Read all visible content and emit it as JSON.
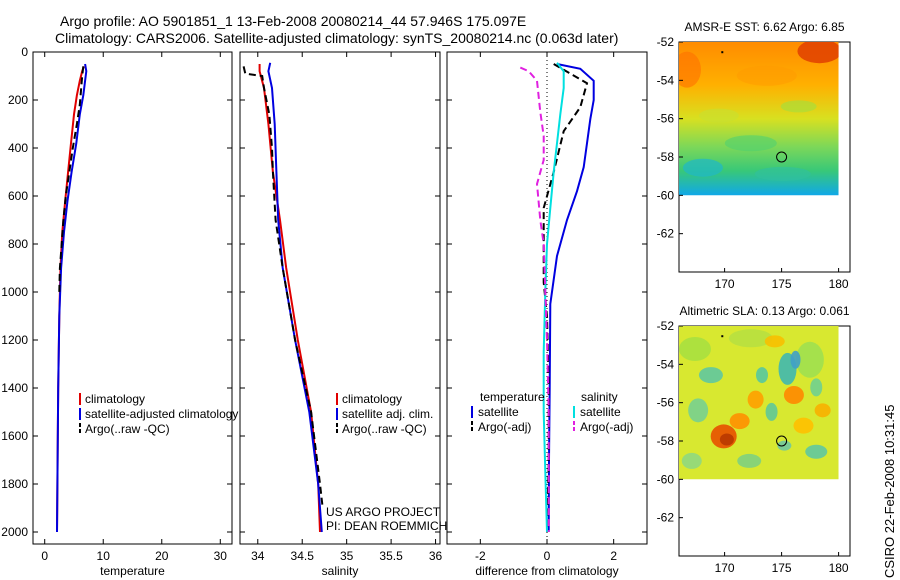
{
  "title": {
    "line1": "Argo profile: AO 5901851_1 13-Feb-2008 20080214_44 57.946S 175.097E",
    "line2": "Climatology: CARS2006. Satellite-adjusted climatology: synTS_20080214.nc (0.063d later)"
  },
  "credit": {
    "project": "US ARGO PROJECT",
    "pi": "PI: DEAN ROEMMICH",
    "stamp": "CSIRO 22-Feb-2008 10:31:45"
  },
  "colors": {
    "climatology": "#e00000",
    "satellite": "#0000e0",
    "argo": "#000000",
    "salinity_satellite": "#00e0e0",
    "salinity_argo": "#e020e0"
  },
  "chart_data": [
    {
      "type": "line",
      "name": "temperature",
      "xlabel": "temperature",
      "ylabel": "",
      "xlim": [
        -2,
        32
      ],
      "ylim": [
        2050,
        0
      ],
      "xticks": [
        0,
        10,
        20,
        30
      ],
      "yticks": [
        0,
        200,
        400,
        600,
        800,
        1000,
        1200,
        1400,
        1600,
        1800,
        2000
      ],
      "legend": {
        "placement": "lower-middle",
        "labels": [
          "climatology",
          "satellite-adjusted climatology",
          "Argo(..raw -QC)"
        ]
      },
      "series": [
        {
          "name": "climatology",
          "color": "#e00000",
          "dash": false,
          "points": [
            [
              6.7,
              60
            ],
            [
              6.4,
              80
            ],
            [
              6.0,
              120
            ],
            [
              5.5,
              180
            ],
            [
              5.0,
              260
            ],
            [
              4.5,
              380
            ],
            [
              4.0,
              500
            ],
            [
              3.5,
              620
            ],
            [
              3.0,
              750
            ],
            [
              2.7,
              900
            ],
            [
              2.5,
              1100
            ],
            [
              2.3,
              1400
            ],
            [
              2.2,
              1700
            ],
            [
              2.1,
              2000
            ]
          ]
        },
        {
          "name": "satellite",
          "color": "#0000e0",
          "dash": false,
          "points": [
            [
              6.9,
              50
            ],
            [
              7.1,
              80
            ],
            [
              6.9,
              120
            ],
            [
              6.6,
              180
            ],
            [
              6.0,
              260
            ],
            [
              5.4,
              380
            ],
            [
              4.6,
              500
            ],
            [
              3.9,
              620
            ],
            [
              3.3,
              750
            ],
            [
              2.8,
              900
            ],
            [
              2.5,
              1100
            ],
            [
              2.3,
              1400
            ],
            [
              2.2,
              1700
            ],
            [
              2.1,
              2000
            ]
          ]
        },
        {
          "name": "argo",
          "color": "#000000",
          "dash": true,
          "points": [
            [
              6.6,
              60
            ],
            [
              6.4,
              100
            ],
            [
              6.2,
              160
            ],
            [
              6.0,
              220
            ],
            [
              5.5,
              300
            ],
            [
              4.8,
              400
            ],
            [
              4.2,
              500
            ],
            [
              3.6,
              600
            ],
            [
              3.2,
              700
            ],
            [
              2.9,
              800
            ],
            [
              2.6,
              900
            ],
            [
              2.5,
              1000
            ]
          ]
        }
      ]
    },
    {
      "type": "line",
      "name": "salinity",
      "xlabel": "salinity",
      "ylabel": "",
      "xlim": [
        33.8,
        36.05
      ],
      "ylim": [
        2050,
        0
      ],
      "xticks": [
        34,
        34.5,
        35,
        35.5,
        36
      ],
      "legend": {
        "placement": "lower-middle",
        "labels": [
          "climatology",
          "satellite adj. clim.",
          "Argo(..raw -QC)"
        ]
      },
      "series": [
        {
          "name": "climatology",
          "color": "#e00000",
          "dash": false,
          "points": [
            [
              34.02,
              50
            ],
            [
              34.02,
              80
            ],
            [
              34.07,
              150
            ],
            [
              34.12,
              300
            ],
            [
              34.17,
              500
            ],
            [
              34.25,
              700
            ],
            [
              34.32,
              900
            ],
            [
              34.45,
              1200
            ],
            [
              34.6,
              1500
            ],
            [
              34.68,
              1800
            ],
            [
              34.7,
              2000
            ]
          ]
        },
        {
          "name": "satellite",
          "color": "#0000e0",
          "dash": false,
          "points": [
            [
              34.14,
              45
            ],
            [
              34.12,
              80
            ],
            [
              34.16,
              150
            ],
            [
              34.19,
              300
            ],
            [
              34.21,
              500
            ],
            [
              34.23,
              700
            ],
            [
              34.28,
              900
            ],
            [
              34.42,
              1200
            ],
            [
              34.58,
              1500
            ],
            [
              34.68,
              1800
            ],
            [
              34.72,
              2000
            ]
          ]
        },
        {
          "name": "argo",
          "color": "#000000",
          "dash": true,
          "points": [
            [
              33.84,
              60
            ],
            [
              33.86,
              90
            ],
            [
              34.05,
              100
            ],
            [
              34.07,
              150
            ],
            [
              34.13,
              260
            ],
            [
              34.16,
              400
            ],
            [
              34.17,
              500
            ],
            [
              34.2,
              700
            ],
            [
              34.28,
              900
            ],
            [
              34.42,
              1200
            ],
            [
              34.6,
              1500
            ],
            [
              34.7,
              1800
            ],
            [
              34.73,
              1900
            ]
          ]
        }
      ]
    },
    {
      "type": "line",
      "name": "difference",
      "xlabel": "difference from climatology",
      "ylabel": "",
      "xlim": [
        -3,
        3
      ],
      "ylim": [
        2050,
        0
      ],
      "xticks": [
        -2,
        0,
        2
      ],
      "legend": {
        "placement": "lower-middle",
        "temperature_heading": "temperature",
        "salinity_heading": "salinity",
        "labels": [
          "satellite",
          "Argo(-adj)",
          "satellite",
          "Argo(-adj)"
        ]
      },
      "series": [
        {
          "name": "temperature satellite",
          "color": "#0000e0",
          "dash": false,
          "points": [
            [
              0.3,
              50
            ],
            [
              1.0,
              70
            ],
            [
              1.4,
              120
            ],
            [
              1.4,
              200
            ],
            [
              1.3,
              280
            ],
            [
              1.2,
              380
            ],
            [
              1.1,
              480
            ],
            [
              0.9,
              580
            ],
            [
              0.6,
              700
            ],
            [
              0.3,
              850
            ],
            [
              0.1,
              1050
            ],
            [
              0.08,
              1400
            ],
            [
              0.06,
              1700
            ],
            [
              0.05,
              2000
            ]
          ]
        },
        {
          "name": "temperature argo",
          "color": "#000000",
          "dash": true,
          "points": [
            [
              0.2,
              50
            ],
            [
              0.7,
              90
            ],
            [
              1.2,
              130
            ],
            [
              1.0,
              230
            ],
            [
              0.5,
              330
            ],
            [
              0.2,
              500
            ],
            [
              -0.1,
              650
            ],
            [
              -0.1,
              820
            ],
            [
              -0.1,
              960
            ],
            [
              0.0,
              1100
            ],
            [
              0.05,
              1400
            ],
            [
              0.05,
              1700
            ],
            [
              0.0,
              2000
            ]
          ]
        },
        {
          "name": "salinity satellite",
          "color": "#00e0e0",
          "dash": false,
          "points": [
            [
              0.3,
              45
            ],
            [
              0.5,
              80
            ],
            [
              0.5,
              150
            ],
            [
              0.4,
              260
            ],
            [
              0.3,
              380
            ],
            [
              0.2,
              500
            ],
            [
              0.1,
              650
            ],
            [
              0.0,
              800
            ],
            [
              -0.05,
              1000
            ],
            [
              -0.1,
              1250
            ],
            [
              -0.1,
              1500
            ],
            [
              -0.05,
              1750
            ],
            [
              0.0,
              2000
            ]
          ]
        },
        {
          "name": "salinity argo",
          "color": "#e020e0",
          "dash": true,
          "points": [
            [
              -0.8,
              65
            ],
            [
              -0.55,
              80
            ],
            [
              -0.3,
              120
            ],
            [
              -0.2,
              250
            ],
            [
              -0.1,
              350
            ],
            [
              -0.1,
              450
            ],
            [
              -0.3,
              550
            ],
            [
              -0.2,
              700
            ],
            [
              -0.1,
              800
            ],
            [
              -0.05,
              1000
            ],
            [
              0.0,
              1200
            ],
            [
              0.05,
              1500
            ],
            [
              0.05,
              1800
            ],
            [
              0.05,
              2000
            ]
          ]
        }
      ]
    },
    {
      "type": "heatmap",
      "name": "sst-map",
      "title": "AMSR-E SST: 6.62  Argo: 6.85",
      "xlim": [
        166,
        181
      ],
      "ylim": [
        -64,
        -52
      ],
      "xticks": [
        170,
        175,
        180
      ],
      "yticks": [
        -52,
        -54,
        -56,
        -58,
        -60,
        -62
      ],
      "data_extent": {
        "lon": [
          166,
          180
        ],
        "lat": [
          -60,
          -52
        ]
      },
      "marker": {
        "lon": 175,
        "lat": -58
      }
    },
    {
      "type": "heatmap",
      "name": "sla-map",
      "title": "Altimetric SLA: 0.13  Argo: 0.061",
      "xlim": [
        166,
        181
      ],
      "ylim": [
        -64,
        -52
      ],
      "xticks": [
        170,
        175,
        180
      ],
      "yticks": [
        -52,
        -54,
        -56,
        -58,
        -60,
        -62
      ],
      "data_extent": {
        "lon": [
          166,
          180
        ],
        "lat": [
          -60,
          -52
        ]
      },
      "marker": {
        "lon": 175,
        "lat": -58
      }
    }
  ]
}
